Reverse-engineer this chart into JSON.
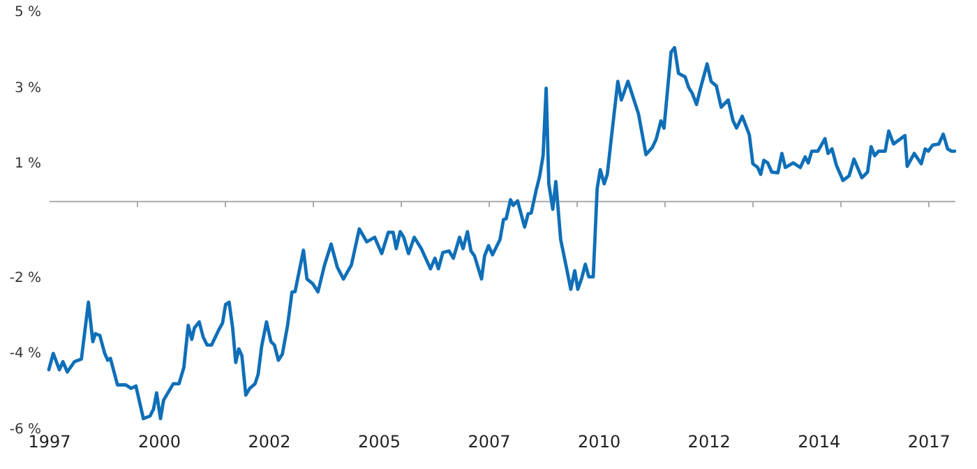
{
  "chart_data": {
    "type": "line",
    "x": [
      1997.0,
      1997.1,
      1997.24,
      1997.32,
      1997.42,
      1997.58,
      1997.74,
      1997.9,
      1998.0,
      1998.06,
      1998.16,
      1998.27,
      1998.34,
      1998.4,
      1998.56,
      1998.75,
      1998.87,
      1998.98,
      1999.15,
      1999.3,
      1999.38,
      1999.45,
      1999.54,
      1999.61,
      1999.83,
      1999.96,
      2000.07,
      2000.17,
      2000.25,
      2000.31,
      2000.42,
      2000.51,
      2000.6,
      2000.7,
      2000.86,
      2000.95,
      2001.02,
      2001.1,
      2001.18,
      2001.25,
      2001.32,
      2001.39,
      2001.48,
      2001.57,
      2001.69,
      2001.76,
      2001.84,
      2001.95,
      2002.05,
      2002.13,
      2002.22,
      2002.31,
      2002.43,
      2002.53,
      2002.6,
      2002.79,
      2002.87,
      2003.0,
      2003.12,
      2003.27,
      2003.42,
      2003.56,
      2003.7,
      2003.88,
      2004.06,
      2004.23,
      2004.41,
      2004.57,
      2004.72,
      2004.83,
      2004.9,
      2004.99,
      2005.07,
      2005.18,
      2005.31,
      2005.47,
      2005.68,
      2005.78,
      2005.86,
      2005.96,
      2006.1,
      2006.2,
      2006.34,
      2006.42,
      2006.52,
      2006.6,
      2006.68,
      2006.84,
      2006.91,
      2007.0,
      2007.09,
      2007.26,
      2007.34,
      2007.4,
      2007.5,
      2007.56,
      2007.66,
      2007.82,
      2007.9,
      2007.97,
      2008.08,
      2008.16,
      2008.24,
      2008.31,
      2008.37,
      2008.46,
      2008.53,
      2008.64,
      2008.78,
      2008.87,
      2008.96,
      2009.03,
      2009.12,
      2009.2,
      2009.28,
      2009.38,
      2009.47,
      2009.54,
      2009.63,
      2009.7,
      2009.8,
      2009.94,
      2010.02,
      2010.17,
      2010.41,
      2010.58,
      2010.72,
      2010.81,
      2010.92,
      2010.99,
      2011.15,
      2011.23,
      2011.32,
      2011.47,
      2011.55,
      2011.63,
      2011.73,
      2011.82,
      2011.97,
      2012.06,
      2012.18,
      2012.29,
      2012.45,
      2012.56,
      2012.64,
      2012.77,
      2012.93,
      2013.01,
      2013.12,
      2013.19,
      2013.26,
      2013.35,
      2013.44,
      2013.58,
      2013.67,
      2013.75,
      2013.93,
      2014.09,
      2014.2,
      2014.27,
      2014.35,
      2014.49,
      2014.65,
      2014.72,
      2014.81,
      2014.91,
      2015.06,
      2015.2,
      2015.31,
      2015.49,
      2015.62,
      2015.7,
      2015.78,
      2015.87,
      2016.02,
      2016.1,
      2016.21,
      2016.47,
      2016.52,
      2016.68,
      2016.84,
      2016.93,
      2017.0,
      2017.1,
      2017.24,
      2017.34,
      2017.44,
      2017.53,
      2017.6
    ],
    "series": [
      {
        "color": "#0f6fb8",
        "values": [
          -4.45,
          -4.02,
          -4.45,
          -4.24,
          -4.51,
          -4.24,
          -4.17,
          -2.67,
          -3.71,
          -3.5,
          -3.55,
          -4.02,
          -4.2,
          -4.15,
          -4.85,
          -4.85,
          -4.94,
          -4.88,
          -5.74,
          -5.67,
          -5.49,
          -5.06,
          -5.74,
          -5.25,
          -4.82,
          -4.82,
          -4.39,
          -3.28,
          -3.65,
          -3.35,
          -3.19,
          -3.59,
          -3.8,
          -3.8,
          -3.41,
          -3.22,
          -2.73,
          -2.67,
          -3.35,
          -4.26,
          -3.9,
          -4.08,
          -5.12,
          -4.94,
          -4.82,
          -4.57,
          -3.83,
          -3.19,
          -3.71,
          -3.8,
          -4.2,
          -4.04,
          -3.28,
          -2.4,
          -2.39,
          -1.3,
          -2.06,
          -2.18,
          -2.4,
          -1.69,
          -1.14,
          -1.75,
          -2.06,
          -1.69,
          -0.74,
          -1.08,
          -0.96,
          -1.39,
          -0.83,
          -0.83,
          -1.26,
          -0.81,
          -0.96,
          -1.39,
          -0.96,
          -1.26,
          -1.79,
          -1.51,
          -1.79,
          -1.36,
          -1.32,
          -1.51,
          -0.96,
          -1.26,
          -0.81,
          -1.32,
          -1.45,
          -2.06,
          -1.45,
          -1.18,
          -1.42,
          -1.02,
          -0.49,
          -0.47,
          0.03,
          -0.12,
          0.0,
          -0.69,
          -0.34,
          -0.32,
          0.27,
          0.64,
          1.19,
          2.97,
          0.45,
          -0.22,
          0.51,
          -1.02,
          -1.81,
          -2.33,
          -1.84,
          -2.33,
          -2.03,
          -1.67,
          -2.0,
          -2.0,
          0.33,
          0.82,
          0.45,
          0.7,
          1.74,
          3.15,
          2.66,
          3.15,
          2.29,
          1.22,
          1.4,
          1.62,
          2.11,
          1.92,
          3.92,
          4.04,
          3.36,
          3.27,
          2.99,
          2.84,
          2.54,
          2.97,
          3.61,
          3.15,
          3.03,
          2.47,
          2.66,
          2.11,
          1.92,
          2.23,
          1.74,
          0.98,
          0.88,
          0.7,
          1.07,
          1.0,
          0.76,
          0.74,
          1.25,
          0.88,
          1.0,
          0.88,
          1.16,
          1.0,
          1.31,
          1.31,
          1.64,
          1.25,
          1.37,
          0.94,
          0.54,
          0.66,
          1.1,
          0.61,
          0.76,
          1.43,
          1.19,
          1.31,
          1.31,
          1.84,
          1.5,
          1.72,
          0.91,
          1.25,
          0.98,
          1.37,
          1.31,
          1.47,
          1.5,
          1.76,
          1.37,
          1.31,
          1.31
        ]
      }
    ],
    "xlim": [
      1997,
      2017.6
    ],
    "xticks": [
      {
        "value": 1997,
        "label": "1997"
      },
      {
        "value": 1999.5,
        "label": "2000"
      },
      {
        "value": 2002,
        "label": "2002"
      },
      {
        "value": 2004.5,
        "label": "2005"
      },
      {
        "value": 2007,
        "label": "2007"
      },
      {
        "value": 2009.5,
        "label": "2010"
      },
      {
        "value": 2012,
        "label": "2012"
      },
      {
        "value": 2014.5,
        "label": "2014"
      },
      {
        "value": 2017,
        "label": "2017"
      },
      {
        "value": 1999,
        "label": null
      },
      {
        "value": 2001,
        "label": null
      },
      {
        "value": 2003,
        "label": null
      },
      {
        "value": 2005,
        "label": null
      },
      {
        "value": 2007,
        "label": null
      },
      {
        "value": 2009,
        "label": null
      },
      {
        "value": 2011,
        "label": null
      },
      {
        "value": 2013,
        "label": null
      },
      {
        "value": 2015,
        "label": null
      },
      {
        "value": 2017,
        "label": null
      }
    ],
    "ylim": [
      -6,
      5
    ],
    "yticks": [
      {
        "value": 5,
        "label": "5 %"
      },
      {
        "value": 3,
        "label": "3 %"
      },
      {
        "value": 1,
        "label": "1 %"
      },
      {
        "value": -2,
        "label": "-2 %"
      },
      {
        "value": -4,
        "label": "-4 %"
      },
      {
        "value": -6,
        "label": "-6 %"
      }
    ],
    "grid": false,
    "marker": "none",
    "line_style": "solid"
  }
}
